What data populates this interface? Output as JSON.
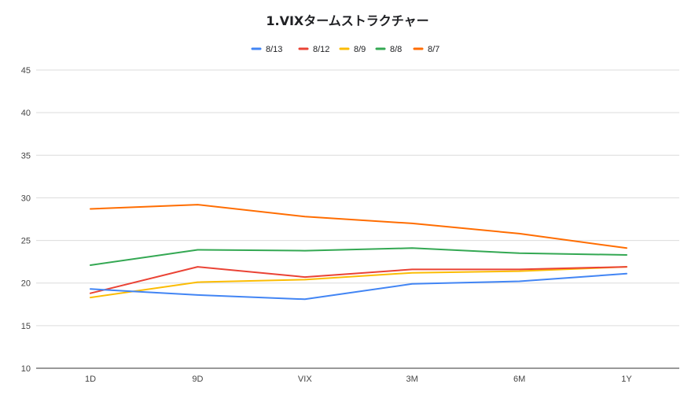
{
  "chart_data": {
    "type": "line",
    "title": "1.VIXタームストラクチャー",
    "xlabel": "",
    "ylabel": "",
    "categories": [
      "1D",
      "9D",
      "VIX",
      "3M",
      "6M",
      "1Y"
    ],
    "ylim": [
      10,
      45
    ],
    "yticks": [
      10,
      15,
      20,
      25,
      30,
      35,
      40,
      45
    ],
    "grid": true,
    "legend_position": "top-center",
    "series": [
      {
        "name": "8/13",
        "color": "#4285f4",
        "values": [
          19.3,
          18.6,
          18.1,
          19.9,
          20.2,
          21.1
        ]
      },
      {
        "name": "8/12",
        "color": "#ea4335",
        "values": [
          18.8,
          21.9,
          20.7,
          21.6,
          21.6,
          21.9
        ]
      },
      {
        "name": "8/9",
        "color": "#fbbc04",
        "values": [
          18.3,
          20.1,
          20.4,
          21.2,
          21.4,
          21.9
        ]
      },
      {
        "name": "8/8",
        "color": "#34a853",
        "values": [
          22.1,
          23.9,
          23.8,
          24.1,
          23.5,
          23.3
        ]
      },
      {
        "name": "8/7",
        "color": "#ff6d01",
        "values": [
          28.7,
          29.2,
          27.8,
          27.0,
          25.8,
          24.1
        ]
      }
    ]
  }
}
